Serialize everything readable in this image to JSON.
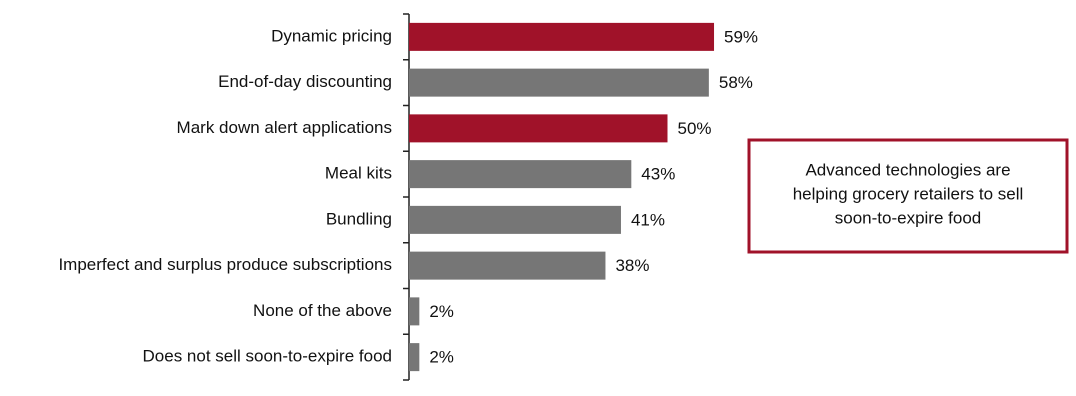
{
  "chart_data": {
    "type": "hbar",
    "categories": [
      "Dynamic pricing",
      "End-of-day discounting",
      "Mark down alert applications",
      "Meal kits",
      "Bundling",
      "Imperfect and surplus produce subscriptions",
      "None of the above",
      "Does not sell soon-to-expire food"
    ],
    "values": [
      59,
      58,
      50,
      43,
      41,
      38,
      2,
      2
    ],
    "value_labels": [
      "59%",
      "58%",
      "50%",
      "43%",
      "41%",
      "38%",
      "2%",
      "2%"
    ],
    "colors": [
      "#a01229",
      "#767676",
      "#a01229",
      "#767676",
      "#767676",
      "#767676",
      "#767676",
      "#767676"
    ],
    "annotation": [
      "Advanced technologies are",
      "helping grocery retailers to sell",
      "soon-to-expire food"
    ],
    "annotation_color": "#a01229"
  }
}
